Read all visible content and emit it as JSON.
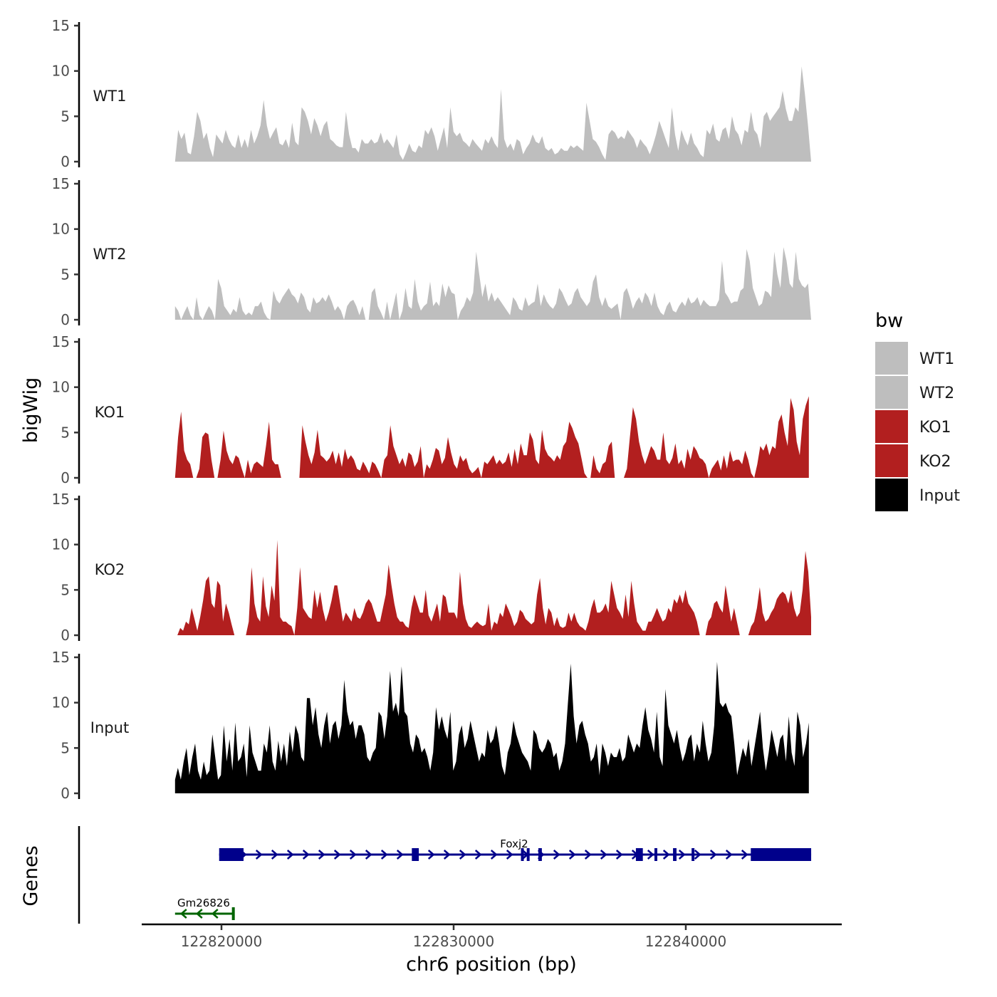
{
  "chart_data": {
    "type": "area",
    "chromosome": "chr6",
    "xlabel": "chr6 position (bp)",
    "ylabel_tracks": "bigWig",
    "ylabel_genes": "Genes",
    "xlim": [
      122816500,
      122845800
    ],
    "data_range": [
      122818000,
      122845400
    ],
    "x_ticks": [
      122820000,
      122830000,
      122840000
    ],
    "x_tick_labels": [
      "122820000",
      "122830000",
      "122840000"
    ],
    "ylim": [
      0,
      15
    ],
    "y_ticks": [
      0,
      5,
      10,
      15
    ],
    "y_tick_labels": [
      "0",
      "5",
      "10",
      "15"
    ],
    "legend": {
      "title": "bw",
      "entries": [
        {
          "name": "WT1",
          "color": "#bebebe"
        },
        {
          "name": "WT2",
          "color": "#bebebe"
        },
        {
          "name": "KO1",
          "color": "#b21f1f"
        },
        {
          "name": "KO2",
          "color": "#b21f1f"
        },
        {
          "name": "Input",
          "color": "#000000"
        }
      ]
    },
    "tracks": [
      {
        "name": "WT1",
        "color": "#bebebe",
        "start": 122818000,
        "end": 122845400,
        "values": [
          0,
          3.5,
          2.5,
          3.2,
          1,
          0.8,
          2.8,
          5.5,
          4.5,
          2.5,
          3.2,
          1.5,
          0.5,
          3,
          2.5,
          2,
          3.5,
          2.5,
          1.8,
          1.5,
          3,
          1.5,
          2.5,
          1.5,
          3.5,
          2,
          2.8,
          4,
          6.8,
          4,
          2.5,
          3.2,
          3.8,
          2,
          1.8,
          2.5,
          1.5,
          4.3,
          2.2,
          1.8,
          6,
          5.5,
          4.5,
          3,
          4.8,
          4,
          2.8,
          4,
          4.5,
          2.5,
          2.2,
          1.8,
          1.6,
          1.6,
          5.5,
          3,
          1.5,
          1.5,
          1,
          2.5,
          2,
          2,
          2.5,
          2,
          2.2,
          3.2,
          2,
          2.5,
          2,
          1.5,
          3,
          0.8,
          0.2,
          1,
          2,
          1.2,
          1,
          1.8,
          1.5,
          3.5,
          3,
          3.8,
          2.8,
          1.2,
          2.5,
          3.8,
          1.5,
          6,
          3.3,
          2.8,
          3.2,
          2.3,
          2,
          1.6,
          2.5,
          2,
          1.6,
          1.2,
          2.5,
          2,
          2.8,
          2,
          1.5,
          8,
          2.5,
          1.5,
          2,
          1.2,
          2.5,
          2.2,
          0.8,
          1.5,
          2,
          3,
          2.2,
          2,
          2.8,
          1.5,
          1.2,
          1.5,
          0.8,
          1,
          1.5,
          1.2,
          1.2,
          1.8,
          1.5,
          1.8,
          1.5,
          1.2,
          6.5,
          4.5,
          2.5,
          2.2,
          1.6,
          0.8,
          0.2,
          3,
          3.5,
          3.2,
          2.5,
          2.8,
          2.5,
          3.5,
          3,
          2.5,
          1.5,
          2.5,
          2,
          1.6,
          0.8,
          1.8,
          3,
          4.5,
          3.5,
          2.5,
          1.5,
          6,
          3,
          1.2,
          3.5,
          2.5,
          1.8,
          3.2,
          2,
          1.5,
          0.8,
          0.5,
          3.5,
          3,
          4.2,
          2.5,
          2.2,
          3.5,
          3.8,
          2.5,
          5,
          3.5,
          3,
          1.8,
          3.5,
          3.2,
          5.5,
          3.5,
          3,
          1.5,
          5,
          5.5,
          4.5,
          5,
          5.5,
          6,
          7.8,
          5.8,
          4.5,
          4.5,
          6,
          5.5,
          10.5,
          7.5,
          4,
          0
        ]
      },
      {
        "name": "WT2",
        "color": "#bebebe",
        "start": 122818000,
        "end": 122845400,
        "values": [
          1.5,
          1,
          0,
          0.8,
          1.5,
          0.5,
          0,
          2.5,
          0.5,
          0,
          0.8,
          1.5,
          1,
          0,
          4.5,
          3.5,
          1.5,
          1,
          0.5,
          1.2,
          0.8,
          2.5,
          1,
          0.5,
          0.8,
          0.5,
          1.5,
          1.5,
          2,
          0.8,
          0.2,
          0,
          3.2,
          2.2,
          1.8,
          2.5,
          3,
          3.5,
          2.8,
          2.5,
          1.8,
          3,
          2.5,
          1.2,
          0.8,
          2.5,
          1.8,
          2,
          2.5,
          2,
          2.8,
          2,
          1,
          1.5,
          1,
          0,
          1.5,
          2,
          2.2,
          1.5,
          0.5,
          1.5,
          0,
          0,
          3,
          3.5,
          1.5,
          0.8,
          0,
          2,
          0,
          1.5,
          3,
          0,
          1,
          3.5,
          1.5,
          1.2,
          4.5,
          2,
          1,
          1.5,
          1.8,
          4.2,
          1.5,
          2,
          1.5,
          4,
          2.5,
          3.8,
          3,
          2.8,
          0,
          1,
          1.5,
          2.5,
          2,
          3,
          7.5,
          5,
          2.5,
          4,
          2,
          3,
          2,
          2.5,
          2,
          1.5,
          1,
          0.5,
          2.5,
          2,
          1.2,
          1,
          2.5,
          1.5,
          1.8,
          2,
          4,
          1.5,
          2.8,
          2,
          1.5,
          1.2,
          1.8,
          3.5,
          3,
          2.2,
          1.5,
          1.8,
          3,
          3.5,
          2.5,
          2,
          1.5,
          2,
          4.2,
          5,
          2.5,
          1.5,
          2.5,
          1.5,
          1.2,
          1.5,
          1.8,
          0,
          3,
          3.5,
          2.5,
          1.2,
          2,
          2.5,
          1.8,
          3,
          2.5,
          1.5,
          3,
          1.5,
          0.8,
          0.5,
          1.5,
          2,
          1,
          0.8,
          1.5,
          2,
          1.5,
          2.5,
          1.8,
          2,
          2.5,
          1.5,
          2.2,
          1.8,
          1.5,
          1.5,
          1.5,
          2.2,
          6.5,
          3,
          2.5,
          1.8,
          2,
          2,
          3.2,
          3.5,
          7.8,
          6.5,
          3.5,
          2.5,
          1.5,
          1.8,
          3.2,
          3,
          2.5,
          7.5,
          5,
          3.5,
          8,
          6.5,
          4,
          3.5,
          7.5,
          4.5,
          3.8,
          3.5,
          4,
          0
        ]
      },
      {
        "name": "KO1",
        "color": "#b21f1f",
        "start": 122818000,
        "end": 122845300,
        "values": [
          0,
          4.5,
          7.3,
          3,
          2,
          1.5,
          0,
          0,
          1,
          4.5,
          5,
          4.8,
          2,
          0,
          0,
          2,
          5.2,
          3,
          2,
          1.5,
          2.5,
          2.2,
          1,
          0,
          2,
          0.5,
          1.5,
          1.8,
          1.5,
          1.2,
          3.5,
          6.2,
          2,
          1.5,
          1.5,
          0,
          null,
          null,
          null,
          null,
          null,
          0,
          5.8,
          4,
          2.5,
          1.5,
          2.8,
          5.3,
          2.5,
          2.2,
          1.8,
          2.2,
          3,
          1.5,
          2.8,
          1.2,
          3.2,
          2,
          2.5,
          2,
          1,
          0.8,
          1.8,
          1.2,
          0.5,
          1.8,
          1.5,
          0.8,
          0,
          2,
          2.5,
          5.8,
          3.5,
          2.5,
          1.5,
          2.2,
          1.2,
          2.8,
          2.5,
          1.2,
          1.8,
          3.5,
          0,
          1.5,
          1,
          2,
          3.3,
          3,
          1.5,
          2.2,
          4.5,
          2.8,
          1.5,
          1,
          2.5,
          1.8,
          2.2,
          1,
          0.5,
          0.8,
          1.2,
          0,
          1.8,
          1.5,
          2,
          2.5,
          1.5,
          2,
          1.5,
          1.8,
          2.8,
          1.2,
          3.2,
          1.5,
          3.8,
          2.5,
          2.5,
          5,
          4.2,
          2,
          1.5,
          5.3,
          3.2,
          2.5,
          2.2,
          1.8,
          2.5,
          2,
          3.5,
          4,
          6.2,
          5.5,
          4.5,
          3.8,
          2.2,
          0.5,
          0,
          0,
          2.5,
          1,
          0.5,
          1.5,
          1.8,
          3.5,
          4,
          0,
          null,
          null,
          0,
          1,
          4.5,
          7.8,
          6.5,
          4,
          2.5,
          1.5,
          2.5,
          3.5,
          3,
          2,
          2,
          5,
          2,
          1.5,
          2.2,
          3.8,
          1.5,
          2,
          1,
          3.2,
          2,
          3.5,
          3,
          2.2,
          2,
          1.5,
          0,
          1,
          1.5,
          2,
          0.8,
          2.5,
          1,
          3,
          1.8,
          2,
          2,
          1.5,
          3,
          2,
          0.5,
          0,
          1.5,
          3.5,
          3,
          3.8,
          2.5,
          3.5,
          3.2,
          6.2,
          7,
          5,
          3.5,
          8.8,
          7.5,
          4,
          2.5,
          6.5,
          8,
          9
        ]
      },
      {
        "name": "KO2",
        "color": "#b21f1f",
        "start": 122818100,
        "end": 122845400,
        "values": [
          0,
          0.8,
          0.5,
          1.5,
          1.2,
          3,
          1.8,
          0.5,
          2,
          3.8,
          6,
          6.5,
          3.5,
          3,
          6,
          5.5,
          1.5,
          3.5,
          2.5,
          1.2,
          0,
          null,
          null,
          null,
          0,
          1.5,
          7.5,
          3.5,
          2,
          1.5,
          6.5,
          3.2,
          2,
          5.5,
          3.8,
          10.5,
          2,
          1.5,
          1.5,
          1.2,
          1,
          0,
          3,
          7.5,
          3,
          2.5,
          2,
          1.8,
          5,
          3,
          4.8,
          2.8,
          1.5,
          2.5,
          3.8,
          5.5,
          5.5,
          3.5,
          1.5,
          2.5,
          2,
          1.5,
          3,
          2,
          1.8,
          2.5,
          3.5,
          4,
          3.5,
          2.5,
          1.5,
          1.5,
          3,
          4.5,
          7.8,
          5.5,
          3.5,
          2,
          1.5,
          1.5,
          1,
          0.8,
          3,
          4.5,
          3.5,
          2.5,
          2.5,
          5,
          2.2,
          1.5,
          2.5,
          3.5,
          1.5,
          4.5,
          4.2,
          2.5,
          2.5,
          2.5,
          1.8,
          7,
          3.5,
          1.8,
          1,
          0.8,
          1.2,
          1.5,
          1.2,
          1,
          1.2,
          3.5,
          0.5,
          1.5,
          1.2,
          2.5,
          2,
          3.5,
          2.8,
          2,
          1,
          1.5,
          2.8,
          2.5,
          1.8,
          1.5,
          1.2,
          1.5,
          4.5,
          6.3,
          3,
          1.2,
          3,
          2.5,
          1,
          2,
          1,
          0.8,
          1,
          2.5,
          1.5,
          2.5,
          1.5,
          1,
          0.8,
          0.5,
          1.5,
          3,
          4,
          2.5,
          2.5,
          2.8,
          3.5,
          2.5,
          6,
          4.5,
          3,
          2.5,
          1.8,
          4.5,
          2,
          6,
          3.5,
          1.5,
          1,
          0.5,
          0.5,
          1.5,
          1.5,
          2.2,
          3,
          2.2,
          1.5,
          1.8,
          3,
          2.5,
          4,
          3.5,
          4.5,
          3.5,
          5,
          3.5,
          3,
          2.5,
          1.5,
          0,
          null,
          0,
          1.5,
          2,
          3.5,
          3.8,
          3,
          2.5,
          5.5,
          3.5,
          1.5,
          3,
          1.5,
          0,
          null,
          null,
          0,
          1,
          1.5,
          3,
          5.3,
          2.5,
          1.5,
          1.8,
          2.5,
          3,
          4,
          4.5,
          4.8,
          4.5,
          3.5,
          5,
          3,
          2,
          2.5,
          5,
          9.3,
          7,
          2
        ]
      },
      {
        "name": "Input",
        "color": "#000000",
        "start": 122818000,
        "end": 122845300,
        "values": [
          1.5,
          2.8,
          1.5,
          3.5,
          5,
          2,
          4,
          5.5,
          2.5,
          1.5,
          3.5,
          2,
          2.5,
          6.5,
          4,
          1.5,
          2,
          7.5,
          3.5,
          6,
          2.5,
          7.8,
          3.5,
          4,
          5.5,
          1.8,
          7.5,
          4.5,
          3.5,
          2.5,
          2.5,
          5.5,
          4.5,
          7.5,
          3.5,
          2.5,
          5.8,
          3.5,
          5.5,
          3,
          6.8,
          4.5,
          7.5,
          6.5,
          4,
          3.5,
          10.5,
          10.5,
          7.5,
          9.5,
          6.5,
          5,
          7.5,
          9,
          5.5,
          7.5,
          8,
          6,
          7.5,
          12.5,
          9,
          7.5,
          8,
          6,
          7.5,
          7.5,
          6.5,
          4,
          3.5,
          4.5,
          5,
          9,
          8.5,
          6,
          8.5,
          13.5,
          9,
          10,
          8.5,
          14,
          9,
          8.5,
          5.5,
          4.5,
          6.5,
          6,
          4.5,
          5,
          4,
          2.5,
          4.5,
          9.5,
          7,
          8.5,
          7,
          6,
          9,
          2.5,
          3.5,
          6.5,
          7.5,
          5,
          6,
          8,
          6.5,
          5,
          3.5,
          4.5,
          4,
          7,
          5.5,
          6,
          7.5,
          5.5,
          3,
          2,
          4.5,
          5.5,
          8,
          6.5,
          5.5,
          4.5,
          4,
          3.5,
          2.5,
          7,
          6.5,
          5,
          4.5,
          5,
          6,
          5.5,
          4,
          4.5,
          2.5,
          3.5,
          5.5,
          10,
          14.3,
          8.5,
          5.5,
          7.5,
          8,
          6.5,
          5.5,
          3.5,
          4,
          5.5,
          2,
          5.5,
          4.5,
          3,
          4.5,
          4,
          4,
          5,
          3.5,
          4,
          6.5,
          5.5,
          4.5,
          5.5,
          5,
          7.5,
          9.5,
          7,
          6,
          4.5,
          9,
          4,
          3,
          11.5,
          7.5,
          6.5,
          5.5,
          7,
          5,
          3.5,
          4.5,
          6,
          6.5,
          3.5,
          5.5,
          4.5,
          8,
          5.5,
          3.5,
          4.5,
          7.5,
          14.5,
          10,
          9.5,
          10,
          9,
          8.5,
          5.5,
          2,
          3.5,
          5,
          4,
          6,
          3,
          5,
          7,
          9,
          5,
          2.5,
          4.5,
          7,
          5.5,
          4,
          6,
          6.5,
          3.5,
          8.5,
          4.5,
          3,
          9,
          7.5,
          4,
          5.5,
          7.8
        ]
      }
    ],
    "genes": [
      {
        "name": "Foxj2",
        "strand": "+",
        "color": "#00008b",
        "start": 122819900,
        "end": 122845400,
        "exons": [
          [
            122819900,
            122820950
          ],
          [
            122828200,
            122828500
          ],
          [
            122832900,
            122833000
          ],
          [
            122833150,
            122833250
          ],
          [
            122833650,
            122833800
          ],
          [
            122837850,
            122838150
          ],
          [
            122838650,
            122838700
          ],
          [
            122839450,
            122839600
          ],
          [
            122840250,
            122840300
          ],
          [
            122842800,
            122845400
          ]
        ]
      },
      {
        "name": "Gm26826",
        "strand": "-",
        "color": "#006400",
        "start": 122818000,
        "end": 122820550,
        "exons": [
          [
            122820450,
            122820550
          ]
        ]
      }
    ]
  }
}
